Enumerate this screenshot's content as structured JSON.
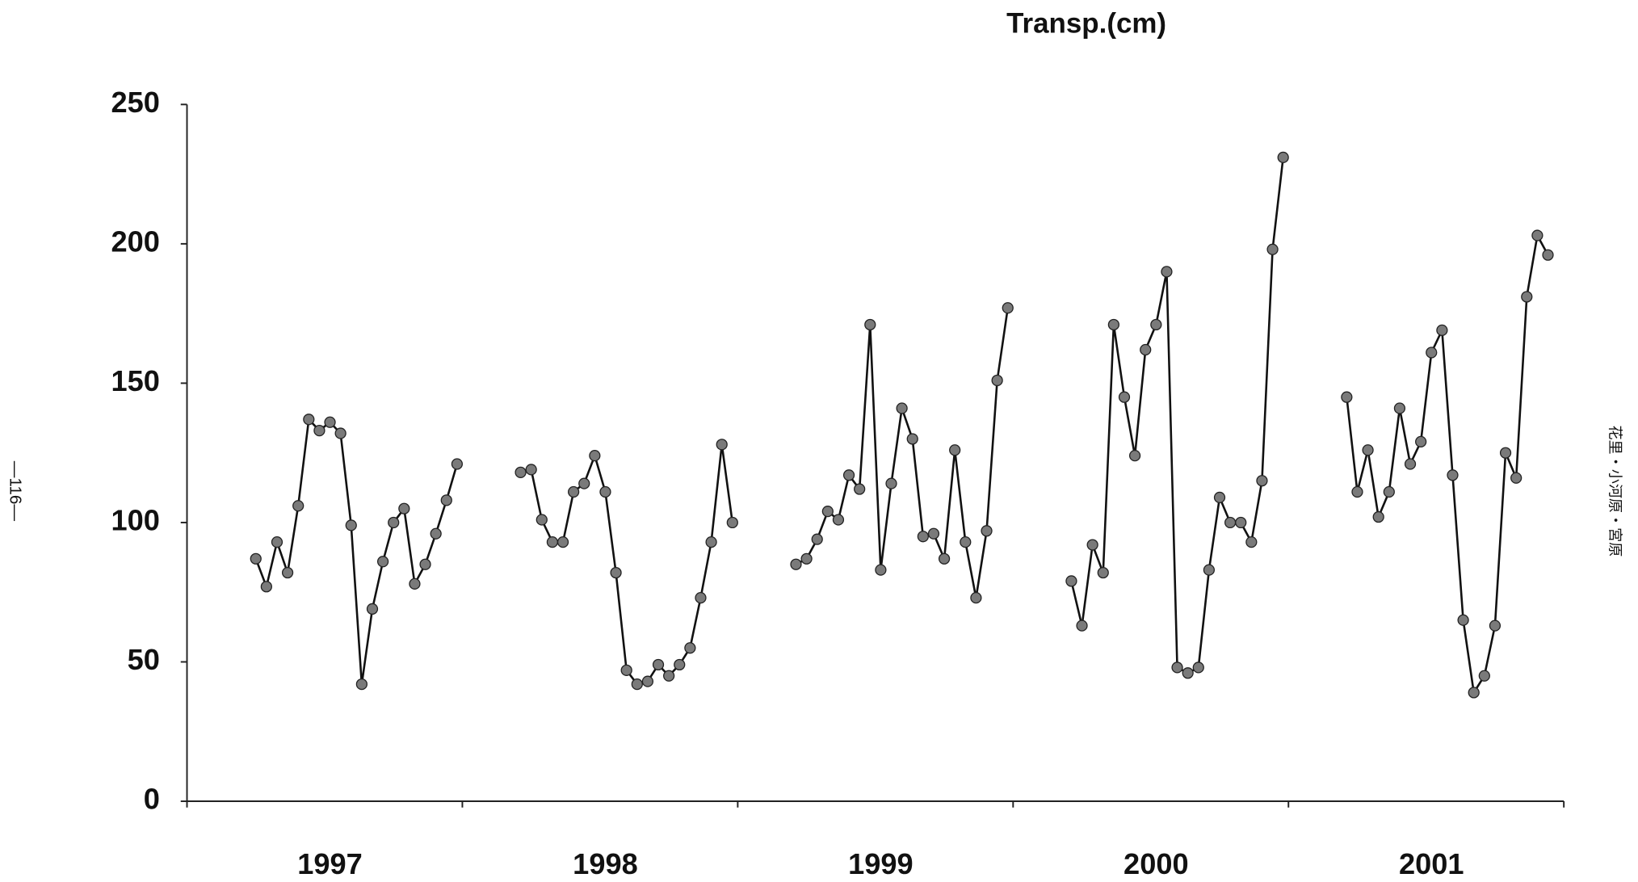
{
  "chart_data": {
    "type": "line",
    "title": "Transp.(cm)",
    "categories": [
      null,
      null,
      null,
      null,
      null,
      null,
      null,
      null,
      null,
      null,
      null,
      null,
      null,
      "1997",
      null,
      null,
      null,
      null,
      null,
      null,
      null,
      null,
      null,
      null,
      null,
      null,
      null,
      null,
      null,
      null,
      null,
      null,
      null,
      null,
      null,
      null,
      null,
      null,
      null,
      "1998",
      null,
      null,
      null,
      null,
      null,
      null,
      null,
      null,
      null,
      null,
      null,
      null,
      null,
      null,
      null,
      null,
      null,
      null,
      null,
      null,
      null,
      null,
      null,
      null,
      null,
      "1999",
      null,
      null,
      null,
      null,
      null,
      null,
      null,
      null,
      null,
      null,
      null,
      null,
      null,
      null,
      null,
      null,
      null,
      null,
      null,
      null,
      null,
      null,
      null,
      null,
      null,
      "2000",
      null,
      null,
      null,
      null,
      null,
      null,
      null,
      null,
      null,
      null,
      null,
      null,
      null,
      null,
      null,
      null,
      null,
      null,
      null,
      null,
      null,
      null,
      null,
      null,
      null,
      "2001",
      null,
      null,
      null,
      null,
      null,
      null,
      null,
      null,
      null,
      null,
      null,
      null
    ],
    "series": [
      {
        "color": "#111111",
        "marker_color": "#7a7a7a",
        "values": [
          null,
          null,
          null,
          null,
          null,
          null,
          87,
          77,
          93,
          82,
          106,
          137,
          133,
          136,
          132,
          99,
          42,
          69,
          86,
          100,
          105,
          78,
          85,
          96,
          108,
          121,
          null,
          null,
          null,
          null,
          null,
          118,
          119,
          101,
          93,
          93,
          111,
          114,
          124,
          111,
          82,
          47,
          42,
          43,
          49,
          45,
          49,
          55,
          73,
          93,
          128,
          100,
          null,
          null,
          null,
          null,
          null,
          85,
          87,
          94,
          104,
          101,
          117,
          112,
          171,
          83,
          114,
          141,
          130,
          95,
          96,
          87,
          126,
          93,
          73,
          97,
          151,
          177,
          null,
          null,
          null,
          null,
          null,
          79,
          63,
          92,
          82,
          171,
          145,
          124,
          162,
          171,
          190,
          48,
          46,
          48,
          83,
          109,
          100,
          100,
          93,
          115,
          198,
          231,
          null,
          null,
          null,
          null,
          null,
          145,
          111,
          126,
          102,
          111,
          141,
          121,
          129,
          161,
          169,
          117,
          65,
          39,
          45,
          63,
          125,
          116,
          181,
          203,
          196,
          null
        ]
      }
    ],
    "ylim": [
      0,
      250
    ],
    "yticks": [
      0,
      50,
      100,
      150,
      200,
      250
    ],
    "grid": false
  },
  "annotations": {
    "page_number": "—116—",
    "authors": "花里・小河原・宮原"
  }
}
